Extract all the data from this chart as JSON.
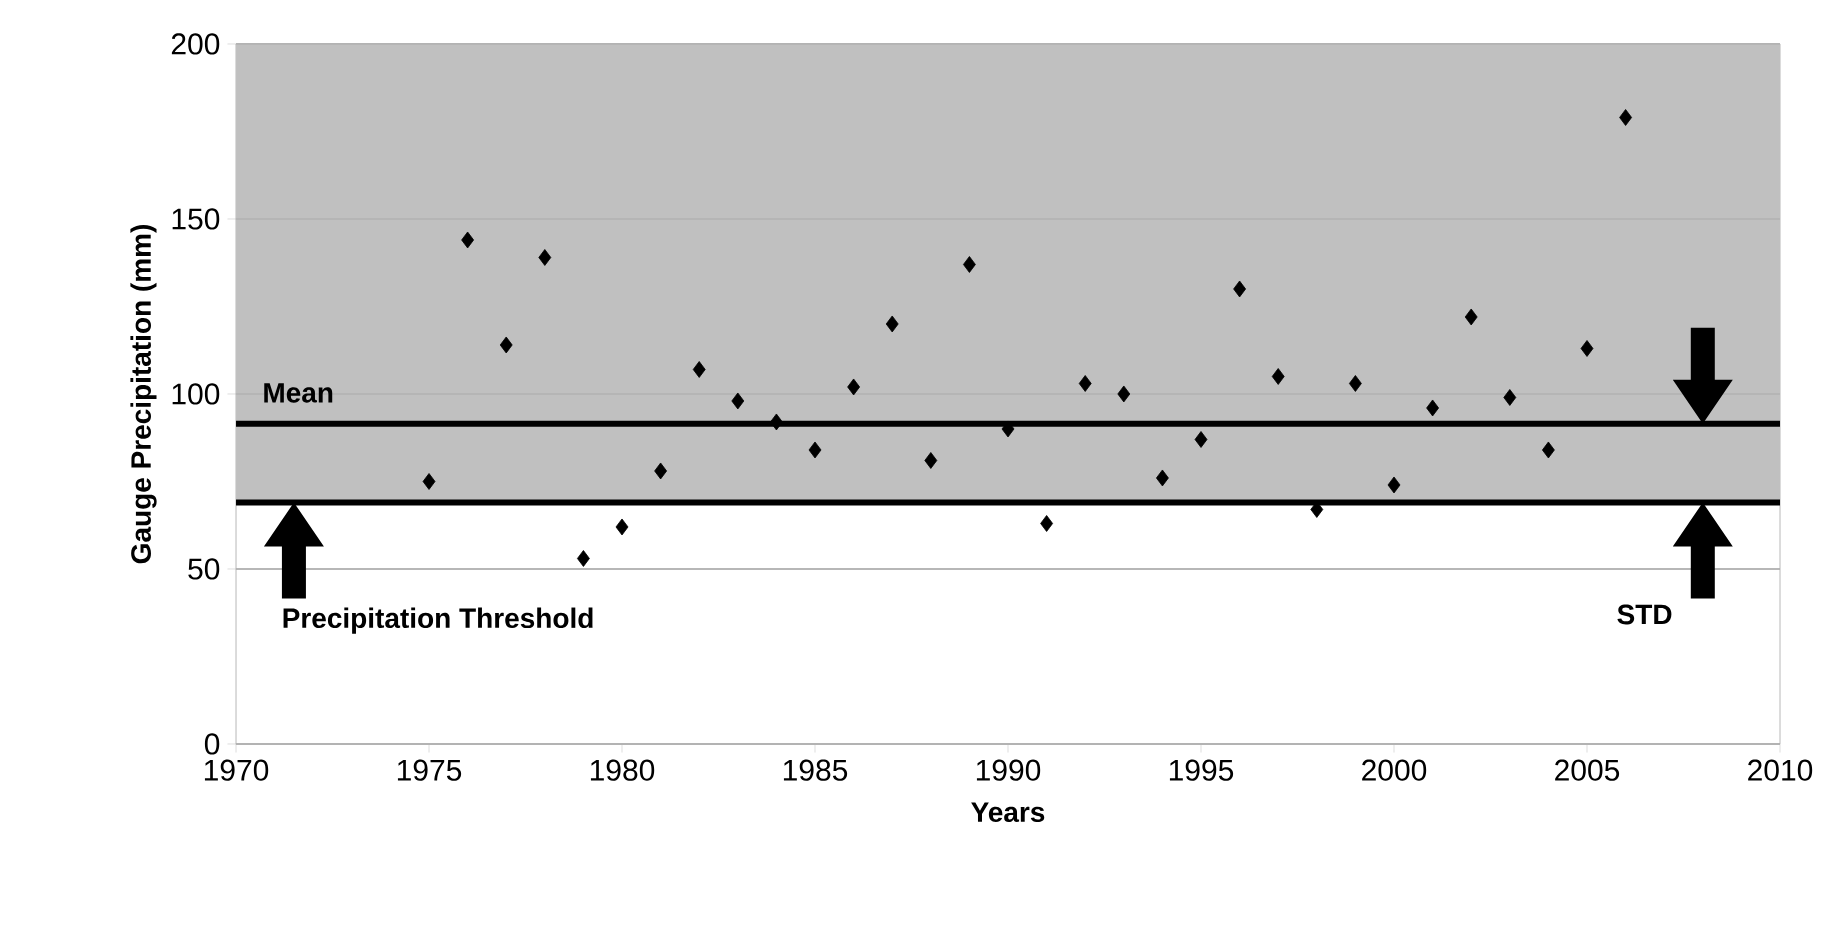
{
  "chart_data": {
    "type": "scatter",
    "xlabel": "Years",
    "ylabel": "Gauge Precipitation (mm)",
    "x": [
      1975,
      1976,
      1977,
      1978,
      1979,
      1980,
      1981,
      1982,
      1983,
      1984,
      1985,
      1986,
      1987,
      1988,
      1989,
      1990,
      1991,
      1992,
      1993,
      1994,
      1995,
      1996,
      1997,
      1998,
      1999,
      2000,
      2001,
      2002,
      2003,
      2004,
      2005,
      2006
    ],
    "values": [
      75,
      144,
      114,
      139,
      53,
      62,
      78,
      107,
      98,
      92,
      84,
      102,
      120,
      81,
      137,
      90,
      63,
      103,
      100,
      76,
      87,
      130,
      105,
      67,
      103,
      74,
      96,
      122,
      99,
      84,
      113,
      179
    ],
    "color": "#000000",
    "marker": "diamond",
    "xlim": [
      1970,
      2010
    ],
    "xticks": [
      1970,
      1975,
      1980,
      1985,
      1990,
      1995,
      2000,
      2005,
      2010
    ],
    "ylim": [
      0,
      200
    ],
    "yticks": [
      0,
      50,
      100,
      150,
      200
    ],
    "grid": "y",
    "ref_lines": [
      {
        "axis": "y",
        "value": 91.5,
        "label": "Mean",
        "color": "#000000"
      },
      {
        "axis": "y",
        "value": 69,
        "color": "#000000"
      }
    ],
    "bands": [
      {
        "axis": "y",
        "from": 69,
        "to": 200,
        "color": "#c0c0c0"
      }
    ],
    "annotations": [
      "Precipitation Threshold",
      "STD"
    ]
  }
}
